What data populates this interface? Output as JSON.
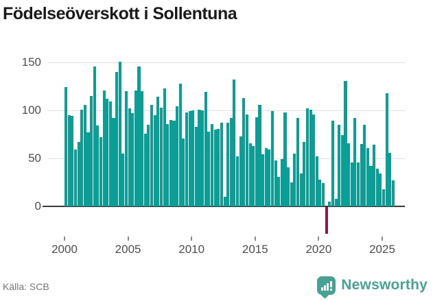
{
  "header": {
    "title": "Födelseöverskott i Sollentuna"
  },
  "footer": {
    "source": "Källa: SCB",
    "brand": {
      "name": "Newsworthy",
      "color": "#48a193"
    }
  },
  "colors": {
    "bar_positive": "#0a9e96",
    "bar_negative": "#8c1a47",
    "gridline": "#e0e0e0",
    "baseline": "#383838",
    "axis_text": "#4d4d4d",
    "title_text": "#1a1a1a",
    "source_text": "#767676"
  },
  "chart_data": {
    "type": "bar",
    "title": "Födelseöverskott i Sollentuna",
    "x_unit": "quarter",
    "x_start_year": 2000,
    "periods_per_year": 4,
    "values": [
      124,
      95,
      94,
      59,
      67,
      101,
      106,
      77,
      115,
      146,
      84,
      72,
      121,
      112,
      109,
      92,
      140,
      151,
      55,
      120,
      102,
      97,
      121,
      146,
      120,
      76,
      85,
      106,
      95,
      114,
      103,
      123,
      86,
      90,
      89,
      104,
      128,
      71,
      98,
      99,
      100,
      83,
      101,
      100,
      119,
      78,
      86,
      80,
      81,
      87,
      10,
      87,
      92,
      132,
      52,
      73,
      113,
      96,
      66,
      63,
      93,
      106,
      54,
      61,
      59,
      99,
      48,
      31,
      49,
      98,
      41,
      25,
      55,
      92,
      34,
      67,
      102,
      101,
      96,
      52,
      28,
      24,
      -28,
      5,
      89,
      8,
      85,
      74,
      131,
      66,
      46,
      92,
      46,
      65,
      85,
      61,
      42,
      64,
      39,
      34,
      18,
      118,
      56,
      27
    ],
    "negative_value": -28,
    "ylim": [
      -40,
      160
    ],
    "grid": true,
    "legend": "none",
    "y_axis": {
      "ticks": [
        {
          "label": "0",
          "value": 0
        },
        {
          "label": "50",
          "value": 50
        },
        {
          "label": "100",
          "value": 100
        },
        {
          "label": "150",
          "value": 150
        }
      ]
    },
    "x_axis": {
      "ticks": [
        {
          "label": "2000",
          "year": 2000
        },
        {
          "label": "2005",
          "year": 2005
        },
        {
          "label": "2010",
          "year": 2010
        },
        {
          "label": "2015",
          "year": 2015
        },
        {
          "label": "2020",
          "year": 2020
        },
        {
          "label": "2025",
          "year": 2025
        }
      ]
    }
  }
}
